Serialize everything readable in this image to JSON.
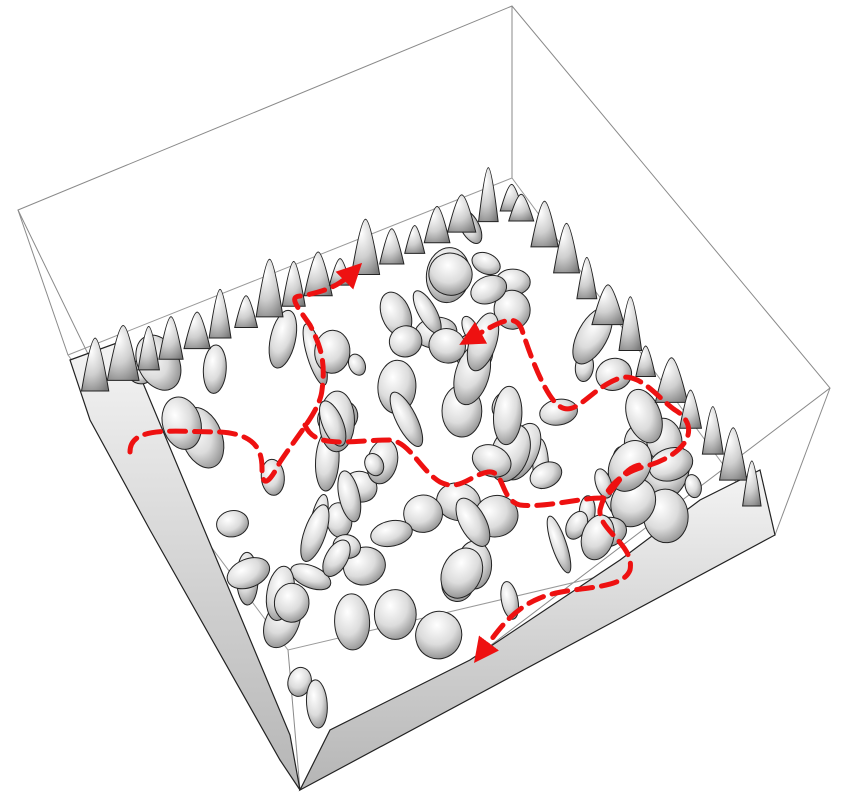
{
  "figure": {
    "kind": "3d-isosurface-render",
    "background_color": "#ffffff",
    "box_line_color": "#8a8a8a",
    "surface_fill_color": "#d9d9d9",
    "surface_edge_color": "#222222",
    "path_color": "#ee1111",
    "path_style": "dashed",
    "path_count": 2,
    "path_arrowheads": 4
  }
}
